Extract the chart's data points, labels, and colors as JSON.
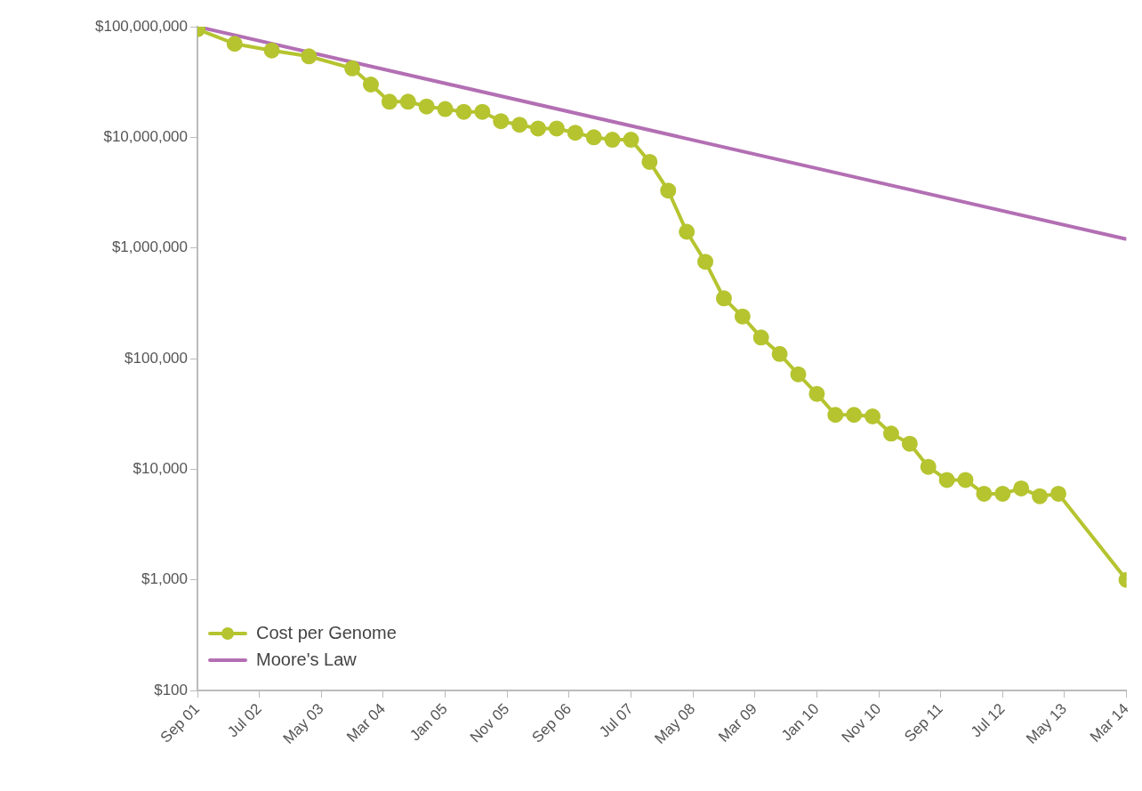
{
  "chart_data": {
    "type": "line",
    "log": "y",
    "grid": false,
    "legend": "bottom left",
    "marker": "circle",
    "line_style": "solid",
    "xlim": [
      "2001-09",
      "2014-03"
    ],
    "xticks": [
      {
        "value": "2001-09",
        "label": "Sep 01"
      },
      {
        "value": "2002-07",
        "label": "Jul 02"
      },
      {
        "value": "2003-05",
        "label": "May 03"
      },
      {
        "value": "2004-03",
        "label": "Mar 04"
      },
      {
        "value": "2005-01",
        "label": "Jan 05"
      },
      {
        "value": "2005-11",
        "label": "Nov 05"
      },
      {
        "value": "2006-09",
        "label": "Sep 06"
      },
      {
        "value": "2007-07",
        "label": "Jul 07"
      },
      {
        "value": "2008-05",
        "label": "May 08"
      },
      {
        "value": "2009-03",
        "label": "Mar 09"
      },
      {
        "value": "2010-01",
        "label": "Jan 10"
      },
      {
        "value": "2010-11",
        "label": "Nov 10"
      },
      {
        "value": "2011-09",
        "label": "Sep 11"
      },
      {
        "value": "2012-07",
        "label": "Jul 12"
      },
      {
        "value": "2013-05",
        "label": "May 13"
      },
      {
        "value": "2014-03",
        "label": "Mar 14"
      }
    ],
    "ylim": [
      100,
      100000000
    ],
    "yticks": [
      {
        "value": 100,
        "label": "$100"
      },
      {
        "value": 1000,
        "label": "$1,000"
      },
      {
        "value": 10000,
        "label": "$10,000"
      },
      {
        "value": 100000,
        "label": "$100,000"
      },
      {
        "value": 1000000,
        "label": "$1,000,000"
      },
      {
        "value": 10000000,
        "label": "$10,000,000"
      },
      {
        "value": 100000000,
        "label": "$100,000,000"
      }
    ],
    "series": [
      {
        "name": "Cost per Genome",
        "color": "#b5c42f",
        "x": [
          "2001-09",
          "2002-03",
          "2002-09",
          "2003-03",
          "2003-10",
          "2004-01",
          "2004-04",
          "2004-07",
          "2004-10",
          "2005-01",
          "2005-04",
          "2005-07",
          "2005-10",
          "2006-01",
          "2006-04",
          "2006-07",
          "2006-10",
          "2007-01",
          "2007-04",
          "2007-07",
          "2007-10",
          "2008-01",
          "2008-04",
          "2008-07",
          "2008-10",
          "2009-01",
          "2009-04",
          "2009-07",
          "2009-10",
          "2010-01",
          "2010-04",
          "2010-07",
          "2010-10",
          "2011-01",
          "2011-04",
          "2011-07",
          "2011-10",
          "2012-01",
          "2012-04",
          "2012-07",
          "2012-10",
          "2013-01",
          "2013-04",
          "2014-03"
        ],
        "values": [
          95000000,
          70000000,
          61000000,
          54000000,
          42000000,
          30000000,
          21000000,
          21000000,
          19000000,
          18000000,
          17000000,
          17000000,
          14000000,
          13000000,
          12000000,
          12000000,
          11000000,
          10000000,
          9500000,
          9500000,
          6000000,
          3300000,
          1400000,
          750000,
          350000,
          240000,
          155000,
          110000,
          72000,
          48000,
          31000,
          31000,
          30000,
          21000,
          17000,
          10500,
          8000,
          8000,
          6000,
          6000,
          6700,
          5700,
          6000,
          1000
        ]
      },
      {
        "name": "Moore's Law",
        "color": "#b36fb3",
        "marker": "none",
        "x": [
          "2001-09",
          "2014-03"
        ],
        "values": [
          100000000,
          1200000
        ]
      }
    ]
  }
}
